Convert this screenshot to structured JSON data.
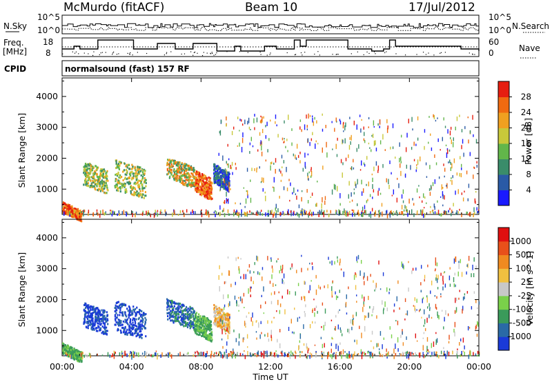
{
  "header": {
    "station": "McMurdo (fitACF)",
    "beam": "Beam 10",
    "date": "17/Jul/2012"
  },
  "strip_nsky": {
    "left_label": "N.Sky",
    "right_label": "N.Search",
    "left_ticks": [
      "10^5",
      "10^0"
    ],
    "right_ticks": [
      "10^5",
      "10^0"
    ]
  },
  "strip_freq": {
    "left_label_1": "Freq.",
    "left_label_2": "[MHz]",
    "right_label": "Nave",
    "left_ticks": [
      "18",
      "8"
    ],
    "right_ticks": [
      "60",
      "0"
    ]
  },
  "strip_cpid": {
    "label": "CPID",
    "program": "normalsound (fast) 157 RF"
  },
  "time_axis": {
    "title": "Time UT",
    "ticks": [
      "00:00",
      "04:00",
      "08:00",
      "12:00",
      "16:00",
      "20:00",
      "00:00"
    ]
  },
  "power_panel": {
    "ylabel": "Slant Range [km]",
    "yticks": [
      "4000",
      "3000",
      "2000",
      "1000"
    ],
    "colorbar_label": "Power [dB]",
    "colorbar_ticks": [
      "28",
      "24",
      "20",
      "16",
      "12",
      "8",
      "4"
    ],
    "colors": [
      "#1a1aff",
      "#2a5aa6",
      "#3a8c6a",
      "#62b64a",
      "#c8c83a",
      "#f0a020",
      "#f06a10",
      "#e61e10"
    ]
  },
  "velocity_panel": {
    "ylabel": "Slant Range [km]",
    "yticks": [
      "4000",
      "3000",
      "2000",
      "1000"
    ],
    "colorbar_label": "Velocity [m s^-1]",
    "colorbar_ticks": [
      "1000",
      "500",
      "100",
      "25",
      "-25",
      "-100",
      "-500",
      "-1000"
    ],
    "colors": [
      "#1a3ad8",
      "#2a6aa6",
      "#3a9a5a",
      "#7ad04a",
      "#c8c8c8",
      "#f0c040",
      "#f08a20",
      "#e8501a",
      "#e01010"
    ]
  },
  "chart_data": [
    {
      "type": "heatmap",
      "title": "Power",
      "xlabel": "Time UT",
      "ylabel": "Slant Range [km]",
      "xlim_hours": [
        0,
        24
      ],
      "ylim_km": [
        180,
        4600
      ],
      "colorbar": {
        "label": "Power [dB]",
        "range": [
          0,
          32
        ]
      },
      "scatter_regions": [
        {
          "t_start": 0.0,
          "t_end": 1.1,
          "range_start": 200,
          "range_end": 700,
          "dominant": "red/orange"
        },
        {
          "t_start": 1.2,
          "t_end": 2.6,
          "range_start": 1000,
          "range_end": 2100,
          "dominant": "green/orange"
        },
        {
          "t_start": 3.0,
          "t_end": 4.8,
          "range_start": 800,
          "range_end": 2200,
          "dominant": "green/orange"
        },
        {
          "t_start": 6.0,
          "t_end": 7.6,
          "range_start": 1200,
          "range_end": 2200,
          "dominant": "orange/green"
        },
        {
          "t_start": 7.6,
          "t_end": 8.6,
          "range_start": 800,
          "range_end": 1800,
          "dominant": "red/orange"
        },
        {
          "t_start": 8.7,
          "t_end": 9.6,
          "range_start": 1100,
          "range_end": 2000,
          "dominant": "blue/green"
        }
      ]
    },
    {
      "type": "heatmap",
      "title": "Velocity",
      "xlabel": "Time UT",
      "ylabel": "Slant Range [km]",
      "xlim_hours": [
        0,
        24
      ],
      "ylim_km": [
        180,
        4600
      ],
      "colorbar": {
        "label": "Velocity [m s^-1]",
        "range": [
          -1000,
          1000
        ]
      },
      "scatter_regions": [
        {
          "t_start": 0.0,
          "t_end": 1.1,
          "range_start": 200,
          "range_end": 700,
          "dominant": "green"
        },
        {
          "t_start": 1.2,
          "t_end": 2.6,
          "range_start": 1000,
          "range_end": 2100,
          "dominant": "blue"
        },
        {
          "t_start": 3.0,
          "t_end": 4.8,
          "range_start": 800,
          "range_end": 2200,
          "dominant": "blue"
        },
        {
          "t_start": 6.0,
          "t_end": 7.6,
          "range_start": 1200,
          "range_end": 2200,
          "dominant": "blue/green"
        },
        {
          "t_start": 7.6,
          "t_end": 8.6,
          "range_start": 800,
          "range_end": 1800,
          "dominant": "green"
        },
        {
          "t_start": 8.7,
          "t_end": 9.6,
          "range_start": 1100,
          "range_end": 2000,
          "dominant": "yellow/orange"
        }
      ]
    }
  ]
}
